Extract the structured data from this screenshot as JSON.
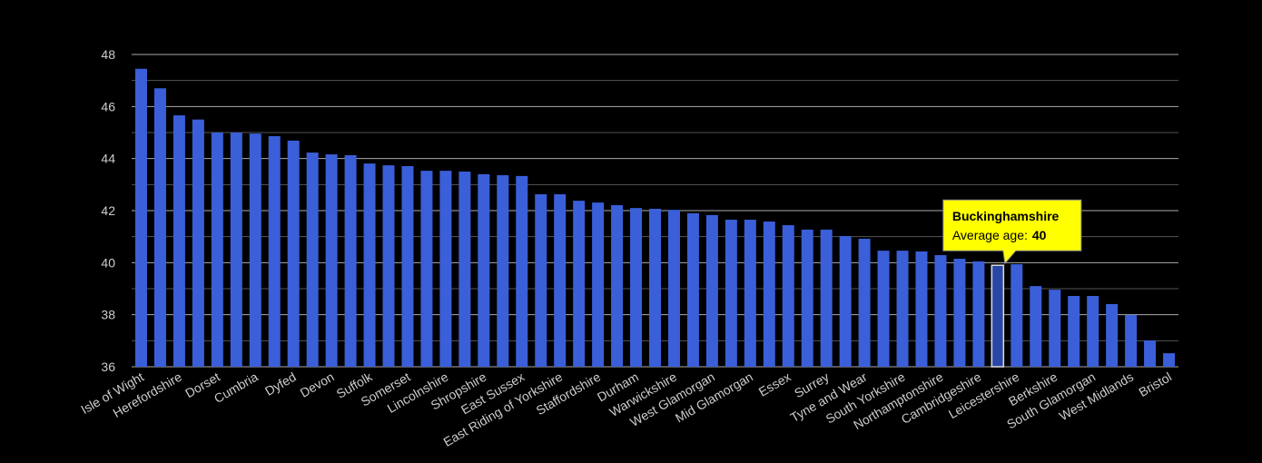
{
  "chart_data": {
    "type": "bar",
    "categories": [
      "Isle of Wight",
      null,
      "Herefordshire",
      null,
      "Dorset",
      null,
      "Cumbria",
      null,
      "Dyfed",
      null,
      "Devon",
      null,
      "Suffolk",
      null,
      "Somerset",
      null,
      "Lincolnshire",
      null,
      "Shropshire",
      null,
      "East Sussex",
      null,
      "East Riding of Yorkshire",
      null,
      "Staffordshire",
      null,
      "Durham",
      null,
      "Warwickshire",
      null,
      "West Glamorgan",
      null,
      "Mid Glamorgan",
      null,
      "Essex",
      null,
      "Surrey",
      null,
      "Tyne and Wear",
      null,
      "South Yorkshire",
      null,
      "Northamptonshire",
      null,
      "Cambridgeshire",
      null,
      "Leicestershire",
      null,
      "Berkshire",
      null,
      "South Glamorgan",
      null,
      "West Midlands",
      null,
      "Bristol"
    ],
    "values": [
      47.45,
      46.7,
      45.66,
      45.5,
      45.0,
      45.0,
      44.96,
      44.86,
      44.69,
      44.23,
      44.16,
      44.13,
      43.81,
      43.74,
      43.71,
      43.53,
      43.53,
      43.5,
      43.4,
      43.36,
      43.33,
      42.63,
      42.63,
      42.38,
      42.31,
      42.21,
      42.1,
      42.07,
      42.03,
      41.9,
      41.83,
      41.65,
      41.65,
      41.58,
      41.44,
      41.27,
      41.27,
      41.02,
      40.92,
      40.46,
      40.46,
      40.43,
      40.29,
      40.15,
      40.05,
      39.9,
      39.94,
      39.1,
      38.96,
      38.72,
      38.72,
      38.41,
      37.99,
      37.01,
      36.52
    ],
    "color": "#3a5fd9",
    "highlight_color": "#2a47a8",
    "highlight_index": 45,
    "tooltip": {
      "title": "Buckinghamshire",
      "label": "Average age:",
      "value": 40
    },
    "ylim": [
      36,
      48
    ],
    "yticks": [
      36,
      38,
      40,
      42,
      44,
      46,
      48
    ],
    "minor_yticks": [
      37,
      39,
      41,
      43,
      45,
      47
    ],
    "grid": true
  }
}
